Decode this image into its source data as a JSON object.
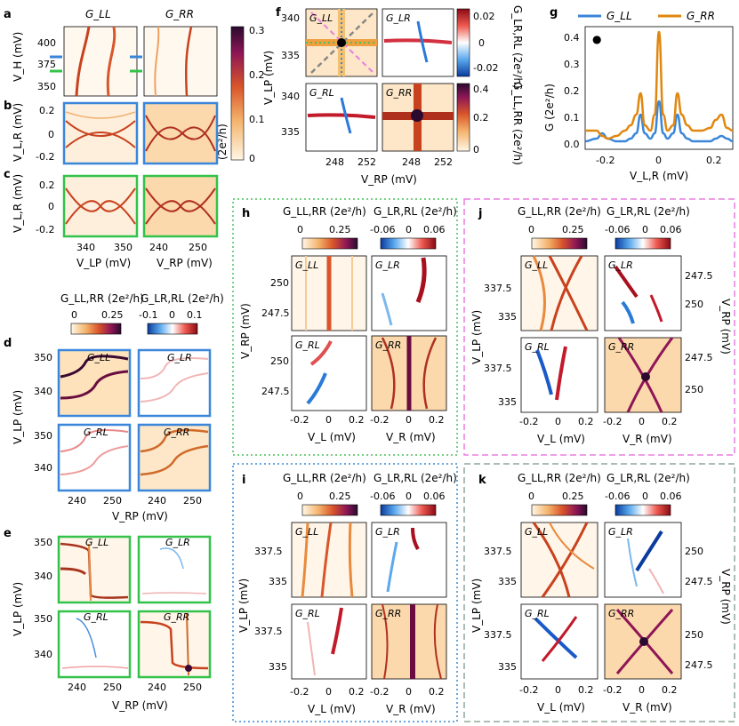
{
  "panel_labels": [
    "a",
    "b",
    "c",
    "d",
    "e",
    "f",
    "g",
    "h",
    "i",
    "j",
    "k"
  ],
  "panel_a": {
    "col_titles": [
      "G_LL",
      "G_RR"
    ],
    "ylabel": "V_H (mV)",
    "yticks": [
      "400",
      "375",
      "350"
    ],
    "colorbar_ticks": [
      "0.3",
      "0.2",
      "0.1",
      "0"
    ],
    "colorbar_label": "(2e²/h)"
  },
  "panel_b": {
    "ylabel": "V_L,R (mV)",
    "yticks": [
      "0.2",
      "0",
      "-0.2"
    ]
  },
  "panel_c": {
    "ylabel": "V_L,R (mV)",
    "yticks": [
      "0.2",
      "0",
      "-0.2"
    ],
    "xticks_left": [
      "340",
      "350"
    ],
    "xticks_right": [
      "240",
      "250"
    ],
    "xlabel_left": "V_LP (mV)",
    "xlabel_right": "V_RP (mV)"
  },
  "panel_d": {
    "cb_left_label": "G_LL,RR (2e²/h)",
    "cb_left_ticks": [
      "0",
      "0.25"
    ],
    "cb_right_label": "G_LR,RL (2e²/h)",
    "cb_right_ticks": [
      "-0.1",
      "0",
      "0.1"
    ],
    "insets": [
      "G_LL",
      "G_LR",
      "G_RL",
      "G_RR"
    ],
    "ylabel": "V_LP (mV)",
    "yticks": [
      "350",
      "340"
    ],
    "xticks": [
      "240",
      "250"
    ]
  },
  "panel_e": {
    "insets": [
      "G_LL",
      "G_LR",
      "G_RL",
      "G_RR"
    ],
    "ylabel": "V_LP (mV)",
    "yticks": [
      "350",
      "340"
    ],
    "xticks": [
      "240",
      "250"
    ],
    "xlabel": "V_RP (mV)"
  },
  "panel_f": {
    "insets": [
      "G_LL",
      "G_LR",
      "G_RL",
      "G_RR"
    ],
    "ylabel": "V_LP (mV)",
    "yticks": [
      "340",
      "335"
    ],
    "xticks": [
      "248",
      "252"
    ],
    "xlabel": "V_RP (mV)",
    "cb_top_ticks": [
      "0.02",
      "0",
      "-0.02"
    ],
    "cb_top_label": "G_LR,RL (2e²/h)",
    "cb_bottom_ticks": [
      "0.4",
      "0.2",
      "0"
    ],
    "cb_bottom_label": "G_LL,RR (2e²/h)"
  },
  "panel_g": {
    "legend": [
      "G_LL",
      "G_RR"
    ],
    "ylabel": "G (2e²/h)",
    "xlabel": "V_L,R (mV)",
    "yticks": [
      "0.4",
      "0.3",
      "0.2",
      "0.1",
      "0.0"
    ],
    "xticks": [
      "-0.2",
      "0",
      "0.2"
    ]
  },
  "chart_data": {
    "type": "line",
    "title": "",
    "xlabel": "V_L,R (mV)",
    "ylabel": "G (2e²/h)",
    "xlim": [
      -0.26,
      0.26
    ],
    "ylim": [
      0,
      0.46
    ],
    "series": [
      {
        "name": "G_LL",
        "color": "#3a86d9",
        "x": [
          -0.26,
          -0.22,
          -0.2,
          -0.18,
          -0.15,
          -0.12,
          -0.1,
          -0.08,
          -0.065,
          -0.05,
          -0.03,
          -0.015,
          0,
          0.015,
          0.03,
          0.05,
          0.065,
          0.08,
          0.1,
          0.12,
          0.15,
          0.18,
          0.2,
          0.22,
          0.24,
          0.26
        ],
        "y": [
          0.03,
          0.04,
          0.06,
          0.04,
          0.03,
          0.03,
          0.04,
          0.06,
          0.13,
          0.06,
          0.04,
          0.06,
          0.18,
          0.06,
          0.04,
          0.06,
          0.13,
          0.06,
          0.04,
          0.03,
          0.03,
          0.03,
          0.04,
          0.05,
          0.04,
          0.03
        ]
      },
      {
        "name": "G_RR",
        "color": "#e0870f",
        "x": [
          -0.26,
          -0.22,
          -0.2,
          -0.18,
          -0.15,
          -0.12,
          -0.1,
          -0.08,
          -0.065,
          -0.05,
          -0.03,
          -0.015,
          0,
          0.015,
          0.03,
          0.05,
          0.065,
          0.08,
          0.1,
          0.12,
          0.15,
          0.18,
          0.2,
          0.22,
          0.24,
          0.26
        ],
        "y": [
          0.07,
          0.07,
          0.05,
          0.04,
          0.05,
          0.07,
          0.09,
          0.13,
          0.21,
          0.09,
          0.07,
          0.13,
          0.44,
          0.13,
          0.07,
          0.09,
          0.21,
          0.13,
          0.09,
          0.07,
          0.07,
          0.08,
          0.11,
          0.13,
          0.08,
          0.07
        ]
      }
    ],
    "annotation": "●"
  },
  "panel_h": {
    "cb_left_label": "G_LL,RR (2e²/h)",
    "cb_left_ticks": [
      "0",
      "0.25"
    ],
    "cb_right_label": "G_LR,RL (2e²/h)",
    "cb_right_ticks": [
      "-0.06",
      "0",
      "0.06"
    ],
    "insets": [
      "G_LL",
      "G_LR",
      "G_RL",
      "G_RR"
    ],
    "ylabel": "V_RP (mV)",
    "yticks": [
      "250",
      "247.5"
    ],
    "xticks": [
      "-0.2",
      "0",
      "0.2"
    ],
    "xlabel_left": "V_L (mV)",
    "xlabel_right": "V_R (mV)"
  },
  "panel_i": {
    "cb_left_label": "G_LL,RR (2e²/h)",
    "cb_left_ticks": [
      "0",
      "0.25"
    ],
    "cb_right_label": "G_LR,RL (2e²/h)",
    "cb_right_ticks": [
      "-0.06",
      "0",
      "0.06"
    ],
    "insets": [
      "G_LL",
      "G_LR",
      "G_RL",
      "G_RR"
    ],
    "ylabel": "V_LP (mV)",
    "yticks": [
      "337.5",
      "335"
    ],
    "xticks": [
      "-0.2",
      "0",
      "0.2"
    ],
    "xlabel_left": "V_L (mV)",
    "xlabel_right": "V_R (mV)"
  },
  "panel_j": {
    "cb_left_label": "G_LL,RR (2e²/h)",
    "cb_left_ticks": [
      "0",
      "0.25"
    ],
    "cb_right_label": "G_LR,RL (2e²/h)",
    "cb_right_ticks": [
      "-0.06",
      "0",
      "0.06"
    ],
    "insets": [
      "G_LL",
      "G_LR",
      "G_RL",
      "G_RR"
    ],
    "ylabel_left": "V_LP (mV)",
    "yticks_left": [
      "337.5",
      "335"
    ],
    "ylabel_right": "V_RP (mV)",
    "yticks_right": [
      "247.5",
      "250"
    ],
    "xticks": [
      "-0.2",
      "0",
      "0.2"
    ],
    "xlabel_left": "V_L (mV)",
    "xlabel_right": "V_R (mV)"
  },
  "panel_k": {
    "cb_left_label": "G_LL,RR (2e²/h)",
    "cb_left_ticks": [
      "0",
      "0.25"
    ],
    "cb_right_label": "G_LR,RL (2e²/h)",
    "cb_right_ticks": [
      "-0.06",
      "0",
      "0.06"
    ],
    "insets": [
      "G_LL",
      "G_LR",
      "G_RL",
      "G_RR"
    ],
    "ylabel_left": "V_LP (mV)",
    "yticks_left": [
      "337.5",
      "335"
    ],
    "ylabel_right": "V_RP (mV)",
    "yticks_right": [
      "250",
      "247.5"
    ],
    "xticks": [
      "-0.2",
      "0",
      "0.2"
    ],
    "xlabel_left": "V_L (mV)",
    "xlabel_right": "V_R (mV)"
  },
  "colors": {
    "blue_frame": "#3a86d9",
    "green_frame": "#33c24a",
    "pink_frame": "#e87fe0",
    "gray_frame": "#8fa89a",
    "dotted_green": "#4ac15a",
    "dotted_blue": "#3a8ad0"
  }
}
